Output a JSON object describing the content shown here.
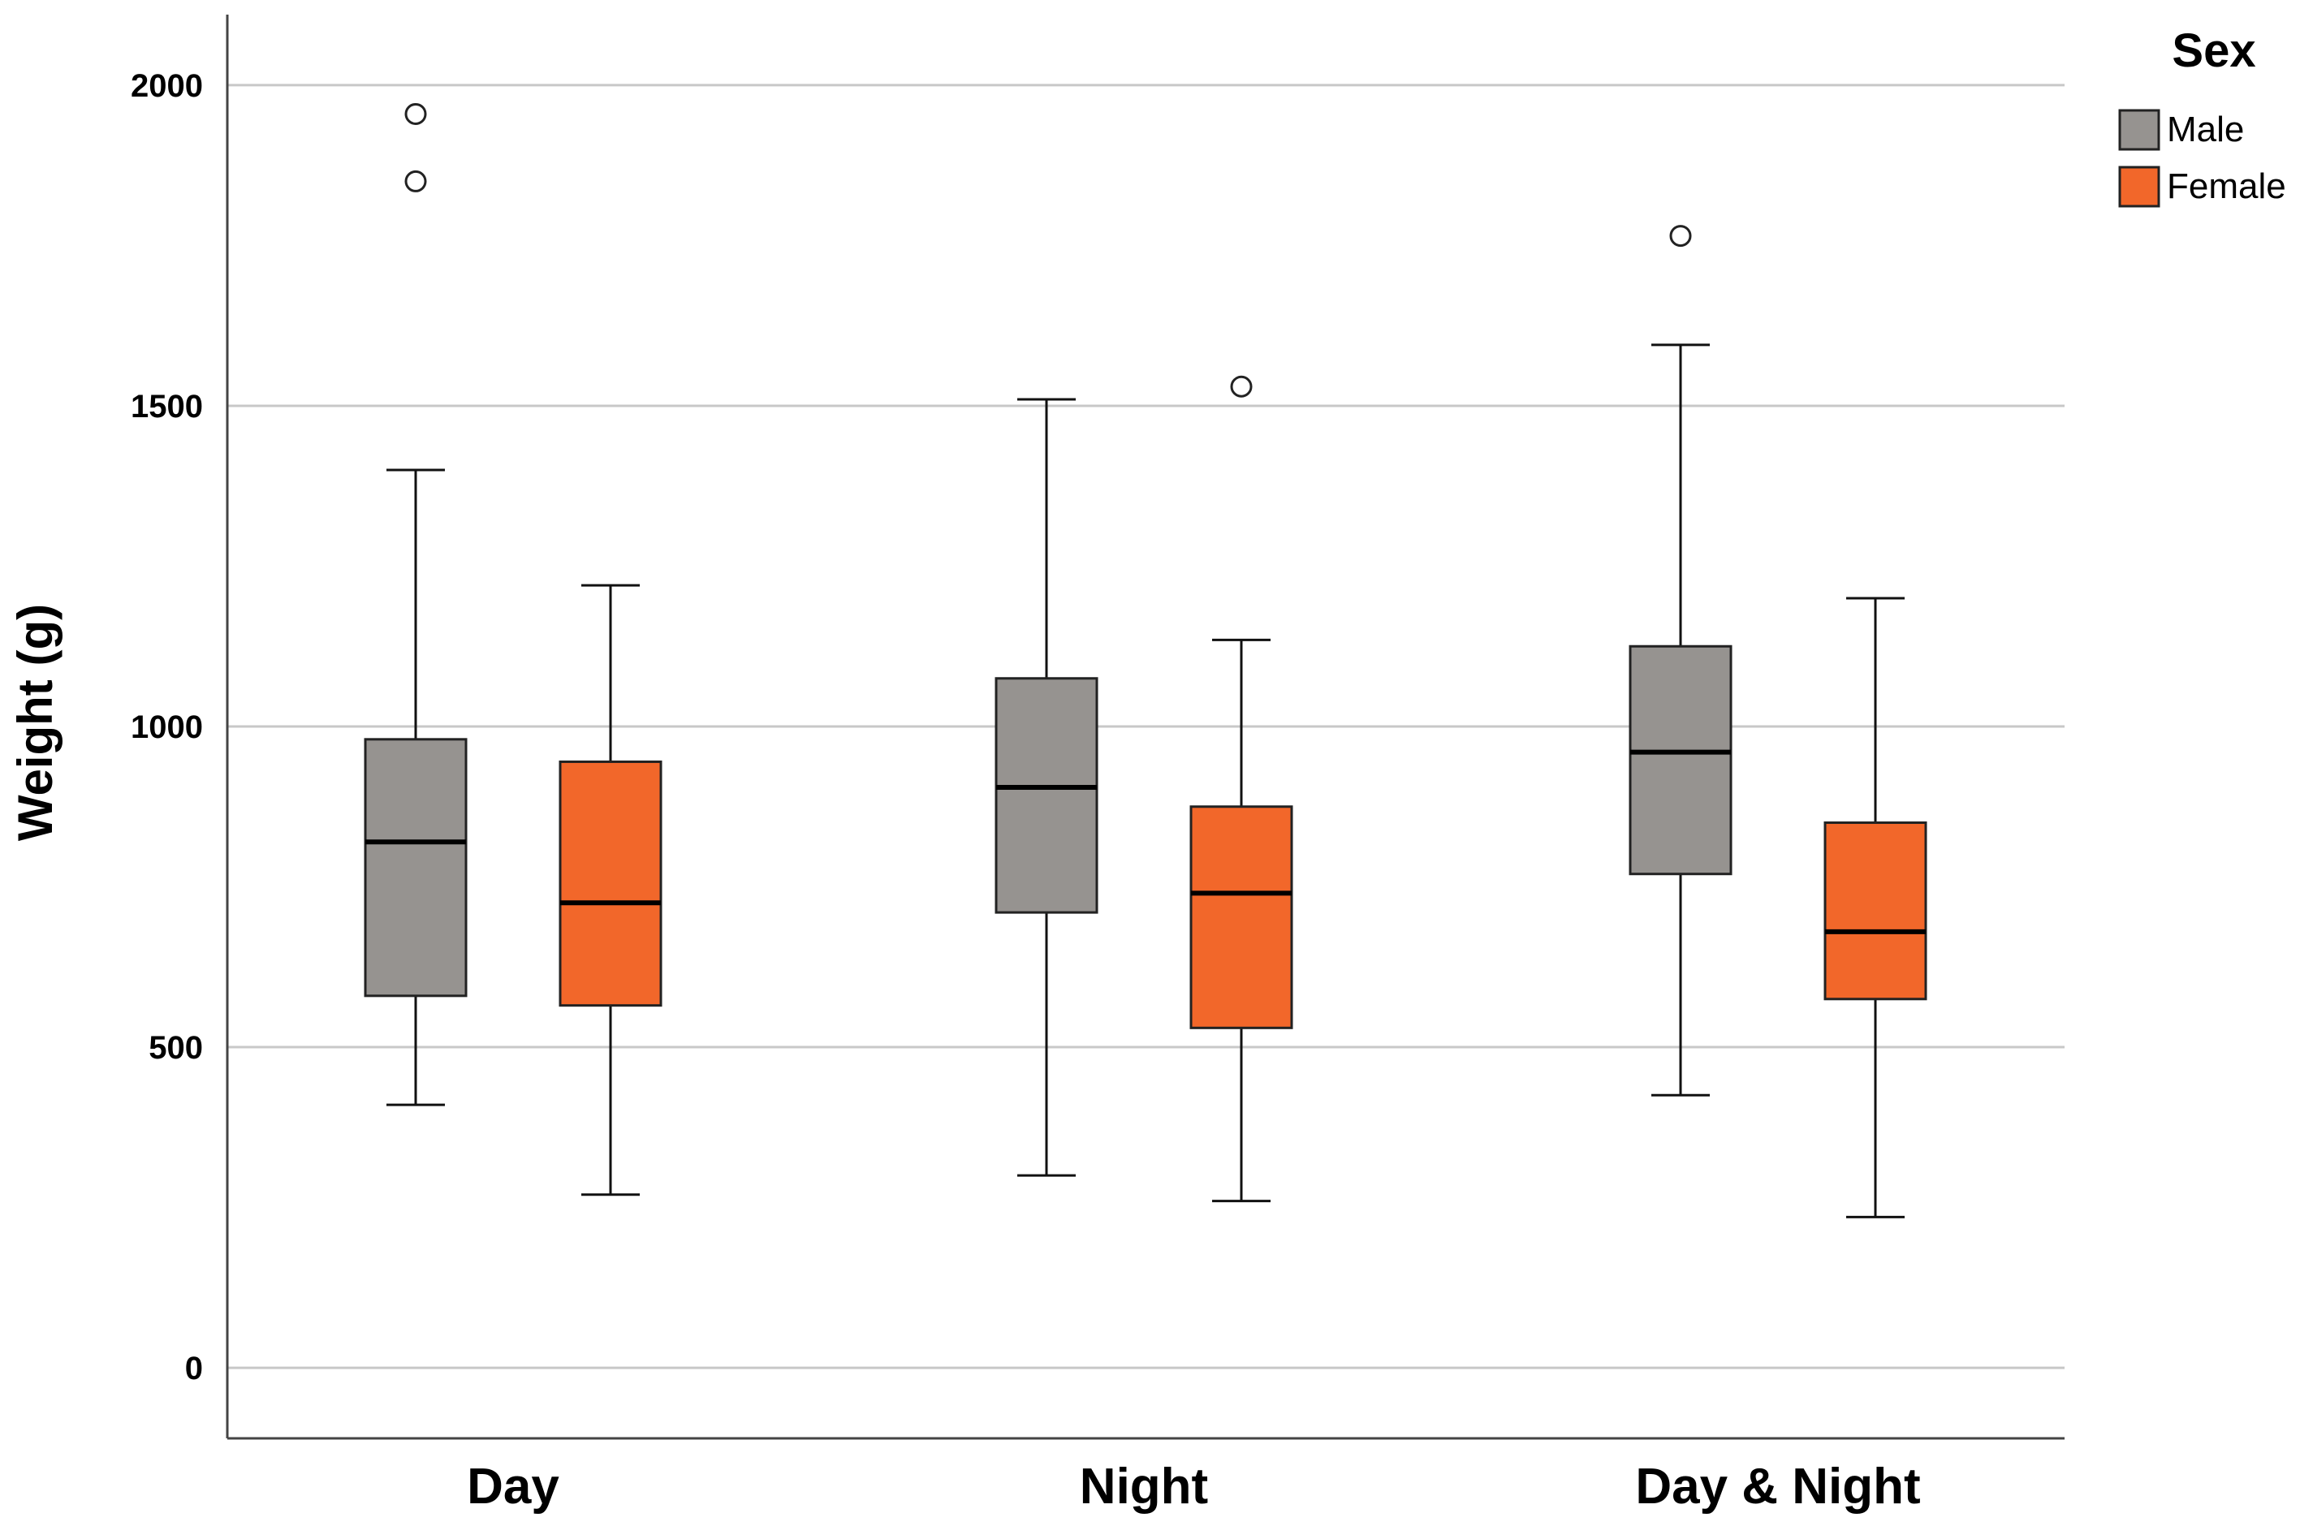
{
  "chart_data": {
    "type": "box",
    "ylabel": "Weight (g)",
    "ylim": [
      -110,
      2110
    ],
    "yticks": [
      0,
      500,
      1000,
      1500,
      2000
    ],
    "grid": true,
    "categories": [
      "Day",
      "Night",
      "Day & Night"
    ],
    "legend": {
      "title": "Sex",
      "placement": "top-right"
    },
    "series": [
      {
        "name": "Male",
        "color": "#969390",
        "boxes": [
          {
            "min": 410,
            "q1": 580,
            "median": 820,
            "q3": 980,
            "max": 1400,
            "outliers": [
              1850,
              1955
            ]
          },
          {
            "min": 300,
            "q1": 710,
            "median": 905,
            "q3": 1075,
            "max": 1510,
            "outliers": []
          },
          {
            "min": 425,
            "q1": 770,
            "median": 960,
            "q3": 1125,
            "max": 1595,
            "outliers": [
              1765
            ]
          }
        ]
      },
      {
        "name": "Female",
        "color": "#f2672a",
        "boxes": [
          {
            "min": 270,
            "q1": 565,
            "median": 725,
            "q3": 945,
            "max": 1220,
            "outliers": []
          },
          {
            "min": 260,
            "q1": 530,
            "median": 740,
            "q3": 875,
            "max": 1135,
            "outliers": [
              1530
            ]
          },
          {
            "min": 235,
            "q1": 575,
            "median": 680,
            "q3": 850,
            "max": 1200,
            "outliers": []
          }
        ]
      }
    ]
  }
}
